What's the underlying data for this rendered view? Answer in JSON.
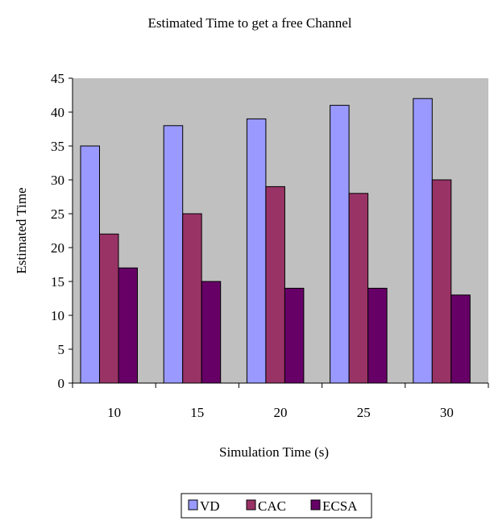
{
  "chart_data": {
    "type": "bar",
    "title": "Estimated Time to get a free Channel",
    "xlabel": "Simulation Time (s)",
    "ylabel": "Estimated Time",
    "categories": [
      "10",
      "15",
      "20",
      "25",
      "30"
    ],
    "series": [
      {
        "name": "VD",
        "values": [
          35,
          38,
          39,
          41,
          42
        ],
        "color": "#9999ff"
      },
      {
        "name": "CAC",
        "values": [
          22,
          25,
          29,
          28,
          30
        ],
        "color": "#993366"
      },
      {
        "name": "ECSA",
        "values": [
          17,
          15,
          14,
          14,
          13
        ],
        "color": "#660066"
      }
    ],
    "ylim": [
      0,
      45
    ],
    "yticks": [
      0,
      5,
      10,
      15,
      20,
      25,
      30,
      35,
      40,
      45
    ],
    "grid": false,
    "plot_background": "#c0c0c0",
    "legend_position": "bottom"
  }
}
